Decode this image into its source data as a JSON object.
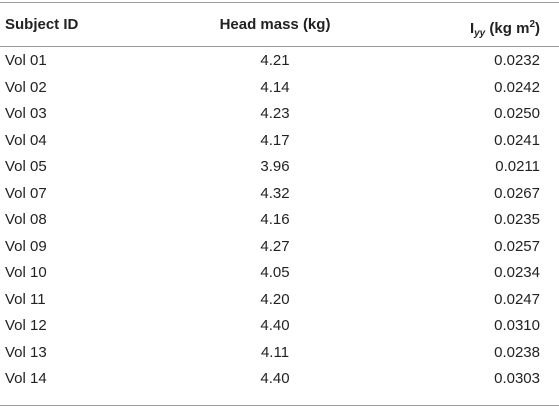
{
  "table": {
    "header": {
      "subject_id": "Subject ID",
      "head_mass": "Head mass (kg)",
      "iyy_main": "I",
      "iyy_sub": "yy",
      "iyy_unit_pre": " (kg m",
      "iyy_unit_sup": "2",
      "iyy_unit_post": ")"
    },
    "rows": [
      {
        "subject_id": "Vol 01",
        "head_mass": "4.21",
        "iyy": "0.0232"
      },
      {
        "subject_id": "Vol 02",
        "head_mass": "4.14",
        "iyy": "0.0242"
      },
      {
        "subject_id": "Vol 03",
        "head_mass": "4.23",
        "iyy": "0.0250"
      },
      {
        "subject_id": "Vol 04",
        "head_mass": "4.17",
        "iyy": "0.0241"
      },
      {
        "subject_id": "Vol 05",
        "head_mass": "3.96",
        "iyy": "0.0211"
      },
      {
        "subject_id": "Vol 07",
        "head_mass": "4.32",
        "iyy": "0.0267"
      },
      {
        "subject_id": "Vol 08",
        "head_mass": "4.16",
        "iyy": "0.0235"
      },
      {
        "subject_id": "Vol 09",
        "head_mass": "4.27",
        "iyy": "0.0257"
      },
      {
        "subject_id": "Vol 10",
        "head_mass": "4.05",
        "iyy": "0.0234"
      },
      {
        "subject_id": "Vol 11",
        "head_mass": "4.20",
        "iyy": "0.0247"
      },
      {
        "subject_id": "Vol 12",
        "head_mass": "4.40",
        "iyy": "0.0310"
      },
      {
        "subject_id": "Vol 13",
        "head_mass": "4.11",
        "iyy": "0.0238"
      },
      {
        "subject_id": "Vol 14",
        "head_mass": "4.40",
        "iyy": "0.0303"
      }
    ]
  }
}
